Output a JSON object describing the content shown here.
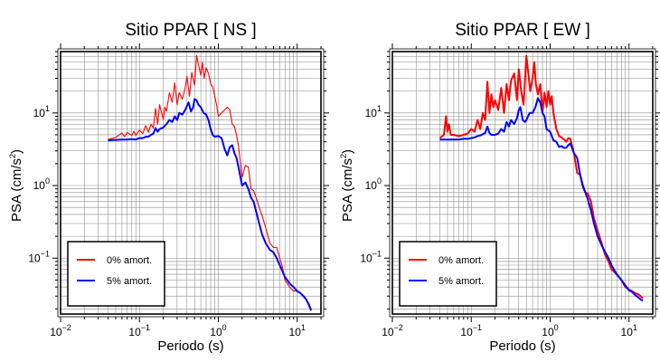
{
  "chart_data": [
    {
      "type": "line",
      "title": "Sitio PPAR [ NS ]",
      "xlabel": "Periodo (s)",
      "ylabel_main": "PSA (cm/s",
      "ylabel_sup": "2",
      "ylabel_close": ")",
      "xscale": "log",
      "yscale": "log",
      "xlim": [
        0.01,
        20
      ],
      "ylim": [
        0.017,
        70
      ],
      "grid": true,
      "legend_position": "bottom-left",
      "x_ticks": [
        {
          "base": "10",
          "exp": "−2",
          "value": 0.01
        },
        {
          "base": "10",
          "exp": "−1",
          "value": 0.1
        },
        {
          "base": "10",
          "exp": "0",
          "value": 1
        },
        {
          "base": "10",
          "exp": "1",
          "value": 10
        }
      ],
      "y_ticks": [
        {
          "base": "10",
          "exp": "−1",
          "value": 0.1
        },
        {
          "base": "10",
          "exp": "0",
          "value": 1
        },
        {
          "base": "10",
          "exp": "1",
          "value": 10
        }
      ],
      "series": [
        {
          "name": "0% amort.",
          "color": "#ff0000",
          "width": 1.1,
          "x": [
            0.04,
            0.05,
            0.06,
            0.065,
            0.07,
            0.08,
            0.085,
            0.09,
            0.1,
            0.11,
            0.12,
            0.13,
            0.14,
            0.15,
            0.16,
            0.17,
            0.18,
            0.2,
            0.21,
            0.22,
            0.24,
            0.26,
            0.28,
            0.3,
            0.32,
            0.35,
            0.38,
            0.4,
            0.43,
            0.46,
            0.5,
            0.53,
            0.56,
            0.6,
            0.63,
            0.66,
            0.7,
            0.75,
            0.8,
            0.85,
            0.9,
            0.95,
            1.0,
            1.1,
            1.2,
            1.3,
            1.4,
            1.5,
            1.6,
            1.7,
            1.8,
            2.0,
            2.2,
            2.4,
            2.6,
            2.8,
            3.0,
            3.3,
            3.6,
            4.0,
            4.5,
            5.0,
            5.5,
            6.0,
            6.5,
            7.0,
            8.0,
            9.0,
            10.0,
            11.0,
            12.0,
            13.0,
            14.0,
            15.0
          ],
          "y": [
            4.3,
            4.6,
            5.3,
            4.7,
            5.4,
            4.9,
            5.6,
            4.9,
            5.8,
            5.2,
            6.7,
            5.4,
            7.0,
            6.2,
            11.5,
            7.0,
            13.0,
            8.2,
            12.0,
            10.5,
            19.0,
            14.0,
            26.0,
            13.0,
            19.0,
            15.5,
            22.0,
            32.0,
            17.0,
            36.0,
            24.0,
            62.0,
            46.0,
            33.0,
            50.0,
            30.0,
            42.0,
            35.0,
            25.0,
            23.0,
            17.0,
            13.0,
            9.0,
            10.0,
            11.0,
            12.0,
            11.0,
            7.0,
            6.5,
            5.0,
            3.5,
            1.3,
            1.9,
            1.8,
            0.9,
            0.85,
            0.7,
            0.5,
            0.38,
            0.26,
            0.16,
            0.14,
            0.14,
            0.1,
            0.075,
            0.05,
            0.04,
            0.035,
            0.036,
            0.033,
            0.03,
            0.027,
            0.024,
            0.02
          ]
        },
        {
          "name": "5% amort.",
          "color": "#0000ff",
          "width": 2,
          "x": [
            0.04,
            0.05,
            0.06,
            0.07,
            0.08,
            0.09,
            0.1,
            0.11,
            0.12,
            0.13,
            0.14,
            0.15,
            0.16,
            0.17,
            0.18,
            0.2,
            0.22,
            0.24,
            0.26,
            0.28,
            0.3,
            0.32,
            0.35,
            0.38,
            0.4,
            0.42,
            0.45,
            0.48,
            0.5,
            0.53,
            0.56,
            0.6,
            0.65,
            0.7,
            0.75,
            0.8,
            0.85,
            0.9,
            1.0,
            1.1,
            1.2,
            1.3,
            1.4,
            1.5,
            1.6,
            1.7,
            1.8,
            2.0,
            2.2,
            2.4,
            2.6,
            2.8,
            3.0,
            3.3,
            3.6,
            4.0,
            4.5,
            5.0,
            5.5,
            6.0,
            7.0,
            8.0,
            9.0,
            10.0,
            11.0,
            12.0,
            13.0,
            14.0,
            15.0
          ],
          "y": [
            4.2,
            4.25,
            4.3,
            4.3,
            4.35,
            4.3,
            4.5,
            4.5,
            4.7,
            4.7,
            5.0,
            5.2,
            6.2,
            5.5,
            6.0,
            6.3,
            7.0,
            8.0,
            7.5,
            9.0,
            8.0,
            10.0,
            9.5,
            11.0,
            12.5,
            14.0,
            10.5,
            12.0,
            15.5,
            15.0,
            13.0,
            12.0,
            10.0,
            9.5,
            8.0,
            6.0,
            5.0,
            4.7,
            4.8,
            4.5,
            3.2,
            2.6,
            3.4,
            3.6,
            2.8,
            2.4,
            1.8,
            1.0,
            1.1,
            0.9,
            0.68,
            0.6,
            0.45,
            0.3,
            0.21,
            0.16,
            0.13,
            0.12,
            0.1,
            0.08,
            0.055,
            0.045,
            0.04,
            0.035,
            0.033,
            0.03,
            0.027,
            0.023,
            0.019
          ]
        }
      ]
    },
    {
      "type": "line",
      "title": "Sitio PPAR [ EW ]",
      "xlabel": "Periodo (s)",
      "ylabel_main": "PSA (cm/s",
      "ylabel_sup": "2",
      "ylabel_close": ")",
      "xscale": "log",
      "yscale": "log",
      "xlim": [
        0.01,
        20
      ],
      "ylim": [
        0.017,
        70
      ],
      "grid": true,
      "legend_position": "bottom-left",
      "x_ticks": [
        {
          "base": "10",
          "exp": "−2",
          "value": 0.01
        },
        {
          "base": "10",
          "exp": "−1",
          "value": 0.1
        },
        {
          "base": "10",
          "exp": "0",
          "value": 1
        },
        {
          "base": "10",
          "exp": "1",
          "value": 10
        }
      ],
      "y_ticks": [
        {
          "base": "10",
          "exp": "−1",
          "value": 0.1
        },
        {
          "base": "10",
          "exp": "0",
          "value": 1
        },
        {
          "base": "10",
          "exp": "1",
          "value": 10
        }
      ],
      "series": [
        {
          "name": "0% amort.",
          "color": "#ff0000",
          "width": 2,
          "x": [
            0.04,
            0.045,
            0.048,
            0.05,
            0.052,
            0.055,
            0.06,
            0.07,
            0.08,
            0.09,
            0.1,
            0.11,
            0.12,
            0.13,
            0.14,
            0.15,
            0.16,
            0.17,
            0.18,
            0.19,
            0.2,
            0.22,
            0.24,
            0.26,
            0.28,
            0.3,
            0.32,
            0.35,
            0.38,
            0.4,
            0.43,
            0.46,
            0.5,
            0.53,
            0.56,
            0.6,
            0.63,
            0.66,
            0.7,
            0.75,
            0.8,
            0.85,
            0.9,
            0.95,
            1.0,
            1.05,
            1.1,
            1.2,
            1.3,
            1.4,
            1.5,
            1.6,
            1.7,
            1.8,
            1.9,
            2.0,
            2.2,
            2.4,
            2.6,
            2.8,
            3.0,
            3.3,
            3.6,
            4.0,
            4.5,
            5.0,
            5.5,
            6.0,
            7.0,
            8.0,
            9.0,
            10.0,
            11.0,
            12.0,
            13.0,
            14.0,
            15.0
          ],
          "y": [
            4.5,
            5.0,
            9.0,
            5.5,
            7.0,
            5.0,
            5.0,
            4.8,
            5.0,
            5.2,
            6.0,
            5.5,
            8.0,
            6.0,
            10.0,
            8.0,
            27.0,
            10.0,
            18.0,
            12.0,
            15.0,
            11.0,
            22.0,
            10.0,
            25.0,
            15.0,
            28.0,
            35.0,
            15.0,
            40.0,
            20.0,
            13.0,
            61.0,
            35.0,
            20.0,
            30.0,
            50.0,
            25.0,
            18.0,
            25.0,
            10.0,
            19.0,
            12.0,
            20.0,
            13.0,
            17.0,
            10.0,
            6.0,
            4.8,
            4.6,
            4.3,
            4.0,
            4.5,
            4.4,
            3.5,
            2.8,
            1.5,
            1.4,
            0.95,
            0.8,
            0.78,
            0.6,
            0.35,
            0.24,
            0.16,
            0.11,
            0.09,
            0.07,
            0.06,
            0.05,
            0.04,
            0.037,
            0.035,
            0.033,
            0.032,
            0.03,
            0.028
          ]
        },
        {
          "name": "5% amort.",
          "color": "#0000ff",
          "width": 2,
          "x": [
            0.04,
            0.05,
            0.06,
            0.07,
            0.08,
            0.09,
            0.1,
            0.11,
            0.12,
            0.13,
            0.14,
            0.15,
            0.16,
            0.17,
            0.18,
            0.2,
            0.22,
            0.24,
            0.26,
            0.28,
            0.3,
            0.32,
            0.35,
            0.38,
            0.4,
            0.42,
            0.45,
            0.48,
            0.5,
            0.55,
            0.6,
            0.65,
            0.7,
            0.75,
            0.8,
            0.85,
            0.9,
            1.0,
            1.1,
            1.2,
            1.3,
            1.4,
            1.5,
            1.6,
            1.7,
            1.8,
            2.0,
            2.2,
            2.4,
            2.6,
            2.8,
            3.0,
            3.3,
            3.6,
            4.0,
            4.5,
            5.0,
            5.5,
            6.0,
            7.0,
            8.0,
            9.0,
            10.0,
            11.0,
            12.0,
            13.0,
            14.0,
            15.0
          ],
          "y": [
            4.3,
            4.3,
            4.3,
            4.3,
            4.4,
            4.4,
            4.5,
            4.6,
            4.8,
            4.9,
            5.1,
            5.3,
            6.5,
            5.3,
            5.0,
            5.0,
            5.2,
            6.0,
            5.5,
            7.5,
            6.5,
            8.0,
            7.0,
            8.5,
            11.0,
            12.0,
            8.0,
            7.5,
            8.0,
            10.0,
            10.0,
            12.0,
            16.0,
            14.0,
            10.0,
            9.0,
            6.0,
            5.5,
            4.2,
            4.0,
            3.4,
            3.5,
            3.3,
            3.3,
            3.6,
            3.8,
            2.8,
            2.4,
            1.4,
            1.0,
            0.8,
            0.65,
            0.45,
            0.3,
            0.2,
            0.15,
            0.12,
            0.1,
            0.08,
            0.06,
            0.05,
            0.042,
            0.036,
            0.034,
            0.031,
            0.029,
            0.027,
            0.026
          ]
        }
      ]
    }
  ]
}
